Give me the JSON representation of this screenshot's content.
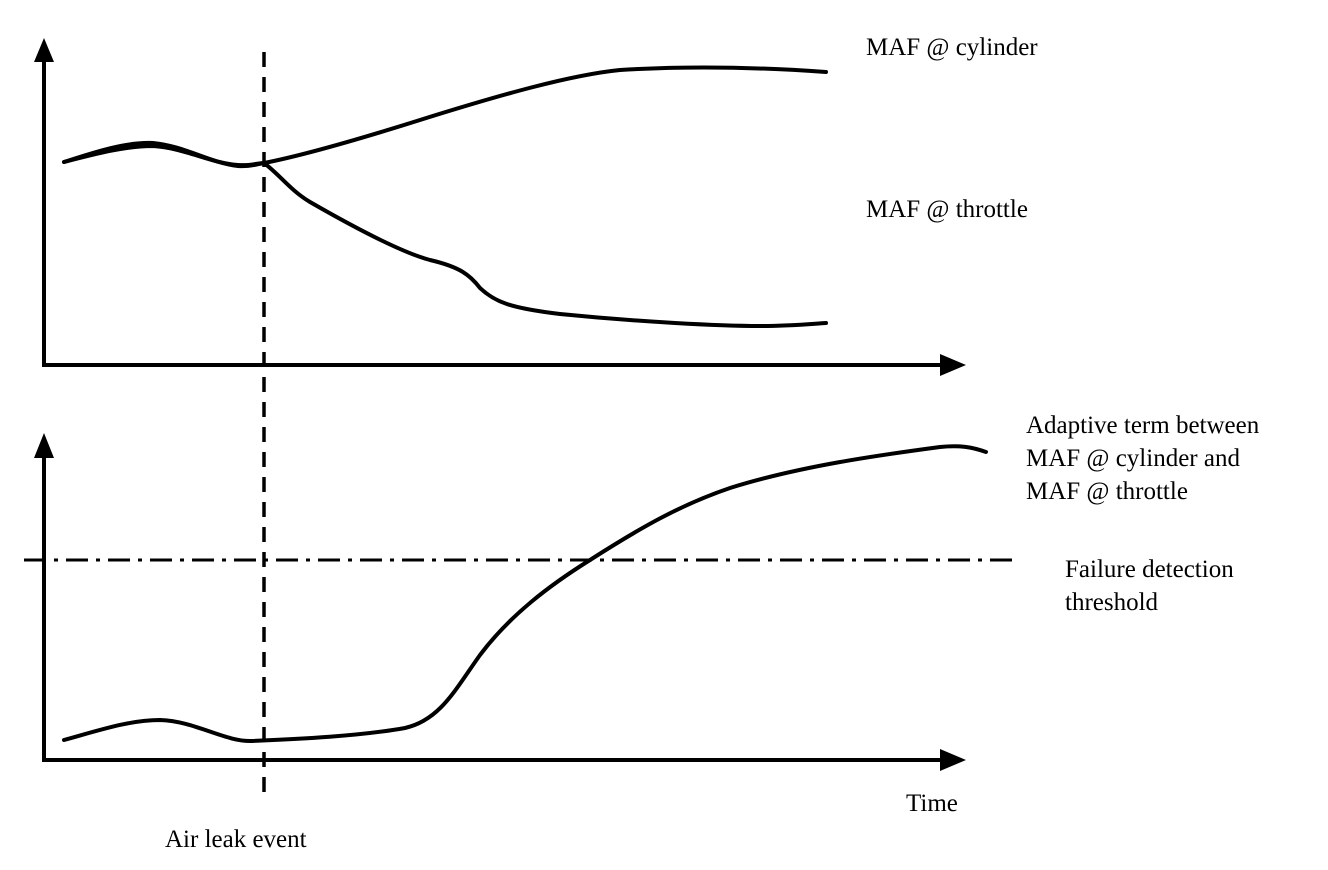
{
  "labels": {
    "maf_cylinder": "MAF @ cylinder",
    "maf_throttle": "MAF @ throttle",
    "adaptive_line1": "Adaptive term between",
    "adaptive_line2": "MAF @ cylinder and",
    "adaptive_line3": "MAF @ throttle",
    "failure_line1": "Failure detection",
    "failure_line2": "threshold",
    "time": "Time",
    "air_leak": "Air leak event"
  },
  "colors": {
    "ink": "#000000",
    "background": "#ffffff"
  }
}
